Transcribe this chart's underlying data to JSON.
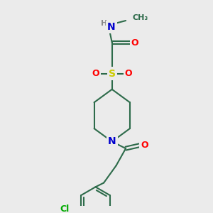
{
  "bg_color": "#ebebeb",
  "bond_color": "#2d6b4a",
  "bond_width": 1.5,
  "atom_colors": {
    "O": "#ff0000",
    "N": "#0000cd",
    "S": "#cccc00",
    "Cl": "#00aa00",
    "H": "#888888",
    "C": "#2d6b4a"
  },
  "font_size": 9
}
